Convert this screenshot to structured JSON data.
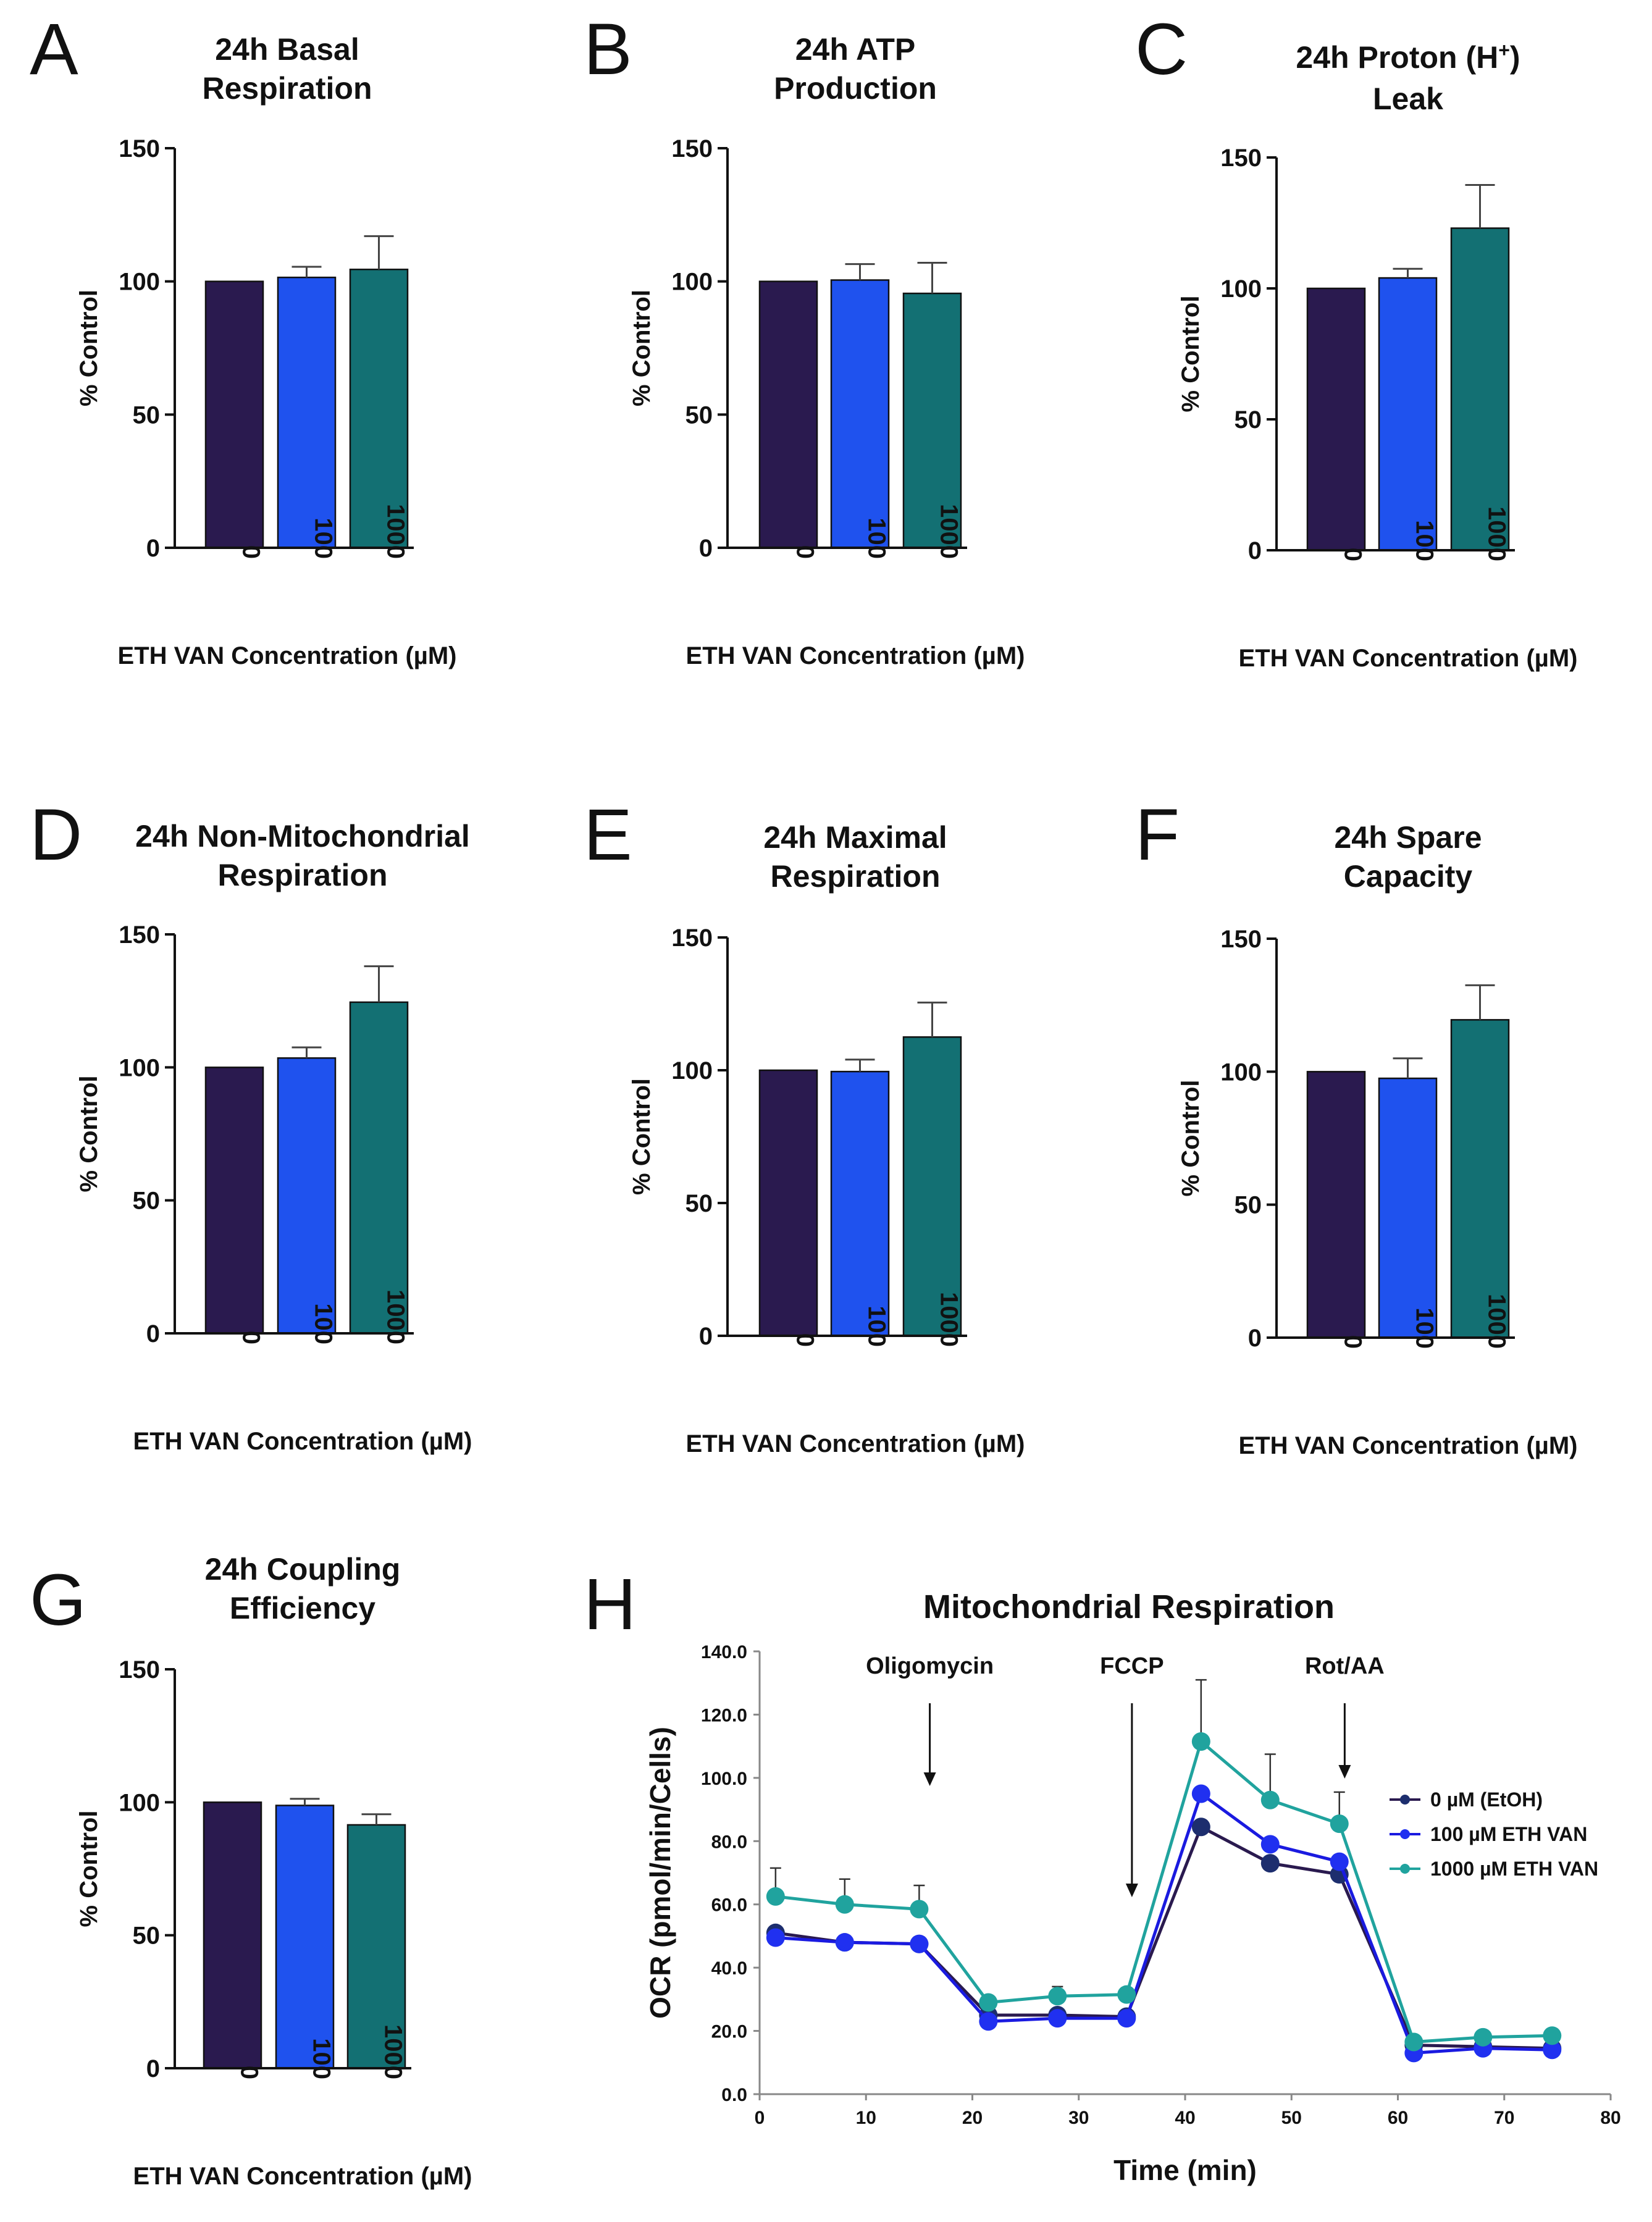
{
  "colors": {
    "c0": "#2a1a4f",
    "c100": "#1f52ee",
    "c1000": "#137073",
    "axis": "#111111"
  },
  "chart_data": [
    {
      "id": "A",
      "type": "bar",
      "panel_label": "A",
      "title": [
        "24h Basal",
        "Respiration"
      ],
      "categories": [
        "0",
        "100",
        "1000"
      ],
      "values": [
        100,
        101.5,
        104.5
      ],
      "errors": [
        0,
        4,
        12.5
      ],
      "ylabel": "% Control",
      "xlabel": "ETH VAN Concentration (µM)",
      "ylim": [
        0,
        150
      ],
      "yticks": [
        0,
        50,
        100,
        150
      ]
    },
    {
      "id": "B",
      "type": "bar",
      "panel_label": "B",
      "title": [
        "24h ATP",
        "Production"
      ],
      "categories": [
        "0",
        "100",
        "1000"
      ],
      "values": [
        100,
        100.5,
        95.5
      ],
      "errors": [
        0,
        6,
        11.5
      ],
      "ylabel": "% Control",
      "xlabel": "ETH VAN Concentration (µM)",
      "ylim": [
        0,
        150
      ],
      "yticks": [
        0,
        50,
        100,
        150
      ]
    },
    {
      "id": "C",
      "type": "bar",
      "panel_label": "C",
      "title": [
        "24h Proton (H",
        "Leak"
      ],
      "title_superscript": "+",
      "title_suffix": ")",
      "categories": [
        "0",
        "100",
        "1000"
      ],
      "values": [
        100,
        104,
        123
      ],
      "errors": [
        0,
        3.5,
        16.5
      ],
      "ylabel": "% Control",
      "xlabel": "ETH VAN Concentration (µM)",
      "ylim": [
        0,
        150
      ],
      "yticks": [
        0,
        50,
        100,
        150
      ]
    },
    {
      "id": "D",
      "type": "bar",
      "panel_label": "D",
      "title": [
        "24h Non-Mitochondrial",
        "Respiration"
      ],
      "categories": [
        "0",
        "100",
        "1000"
      ],
      "values": [
        100,
        103.5,
        124.5
      ],
      "errors": [
        0,
        4,
        13.5
      ],
      "ylabel": "% Control",
      "xlabel": "ETH VAN Concentration (µM)",
      "ylim": [
        0,
        150
      ],
      "yticks": [
        0,
        50,
        100,
        150
      ]
    },
    {
      "id": "E",
      "type": "bar",
      "panel_label": "E",
      "title": [
        "24h Maximal",
        "Respiration"
      ],
      "categories": [
        "0",
        "100",
        "1000"
      ],
      "values": [
        100,
        99.5,
        112.5
      ],
      "errors": [
        0,
        4.5,
        13
      ],
      "ylabel": "% Control",
      "xlabel": "ETH VAN Concentration (µM)",
      "ylim": [
        0,
        150
      ],
      "yticks": [
        0,
        50,
        100,
        150
      ]
    },
    {
      "id": "F",
      "type": "bar",
      "panel_label": "F",
      "title": [
        "24h Spare",
        "Capacity"
      ],
      "categories": [
        "0",
        "100",
        "1000"
      ],
      "values": [
        100,
        97.5,
        119.5
      ],
      "errors": [
        0,
        7.5,
        13
      ],
      "ylabel": "% Control",
      "xlabel": "ETH VAN Concentration (µM)",
      "ylim": [
        0,
        150
      ],
      "yticks": [
        0,
        50,
        100,
        150
      ]
    },
    {
      "id": "G",
      "type": "bar",
      "panel_label": "G",
      "title": [
        "24h Coupling",
        "Efficiency"
      ],
      "categories": [
        "0",
        "100",
        "1000"
      ],
      "values": [
        100,
        98.8,
        91.5
      ],
      "errors": [
        0,
        2.5,
        4
      ],
      "ylabel": "% Control",
      "xlabel": "ETH VAN Concentration (µM)",
      "ylim": [
        0,
        150
      ],
      "yticks": [
        0,
        50,
        100,
        150
      ]
    },
    {
      "id": "H",
      "type": "line",
      "panel_label": "H",
      "title": "Mitochondrial Respiration",
      "xlabel": "Time (min)",
      "ylabel": "OCR (pmol/min/Cells)",
      "xlim": [
        0,
        80
      ],
      "ylim": [
        0,
        140
      ],
      "xticks": [
        0,
        10,
        20,
        30,
        40,
        50,
        60,
        70,
        80
      ],
      "yticks": [
        "0.0",
        "20.0",
        "40.0",
        "60.0",
        "80.0",
        "100.0",
        "120.0",
        "140.0"
      ],
      "x": [
        1.5,
        8,
        15,
        21.5,
        28,
        34.5,
        41.5,
        48,
        54.5,
        61.5,
        68,
        74.5
      ],
      "series": [
        {
          "name": "0 µM (EtOH)",
          "values": [
            51,
            48,
            47.5,
            25,
            25,
            24.5,
            84.5,
            73,
            69.5,
            15.5,
            15,
            14.5
          ]
        },
        {
          "name": "100 µM ETH VAN",
          "values": [
            49.5,
            48,
            47.5,
            23,
            24,
            24,
            95,
            79,
            73.5,
            13,
            14.5,
            14
          ]
        },
        {
          "name": "1000 µM ETH VAN",
          "values": [
            62.5,
            60,
            58.5,
            29,
            31,
            31.5,
            111.5,
            93,
            85.5,
            16.5,
            18,
            18.5
          ]
        }
      ],
      "error_top": [
        71.5,
        68,
        66,
        30,
        34,
        33,
        131,
        107.5,
        95.5,
        18,
        19,
        19.5
      ],
      "annotations": [
        {
          "text": "Oligomycin",
          "x": 16
        },
        {
          "text": "FCCP",
          "x": 35
        },
        {
          "text": "Rot/AA",
          "x": 55
        }
      ],
      "legend": [
        "0 µM (EtOH)",
        "100 µM ETH VAN",
        "1000 µM ETH VAN"
      ],
      "legend_position": "right"
    }
  ]
}
